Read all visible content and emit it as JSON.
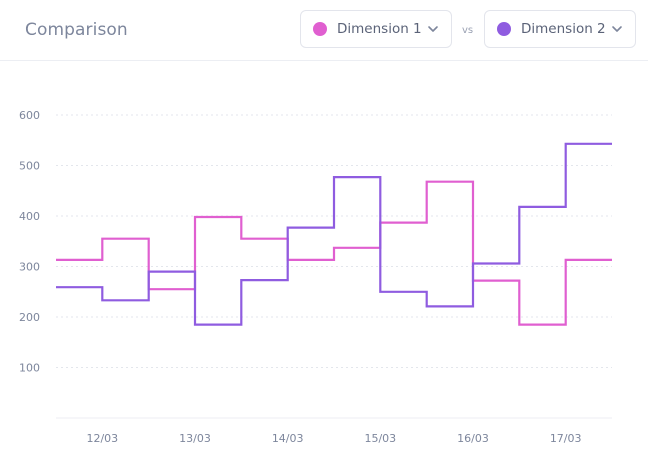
{
  "header": {
    "title": "Comparison",
    "vs": "vs",
    "dropdown1": {
      "label": "Dimension 1",
      "color": "#e05fd0"
    },
    "dropdown2": {
      "label": "Dimension 2",
      "color": "#8f5ce0"
    }
  },
  "chart_data": {
    "type": "line",
    "step": true,
    "x_labels": [
      "12/03",
      "13/03",
      "14/03",
      "15/03",
      "16/03",
      "17/03"
    ],
    "yticks": [
      100,
      200,
      300,
      400,
      500,
      600
    ],
    "ylim": [
      0,
      600
    ],
    "grid": true,
    "series": [
      {
        "name": "Dimension 1",
        "color": "#e05fd0",
        "values": [
          313,
          355,
          255,
          398,
          355,
          313,
          337,
          387,
          468,
          272,
          185,
          313
        ]
      },
      {
        "name": "Dimension 2",
        "color": "#8f5ce0",
        "values": [
          259,
          233,
          290,
          185,
          273,
          377,
          477,
          250,
          221,
          306,
          418,
          543
        ]
      }
    ]
  }
}
